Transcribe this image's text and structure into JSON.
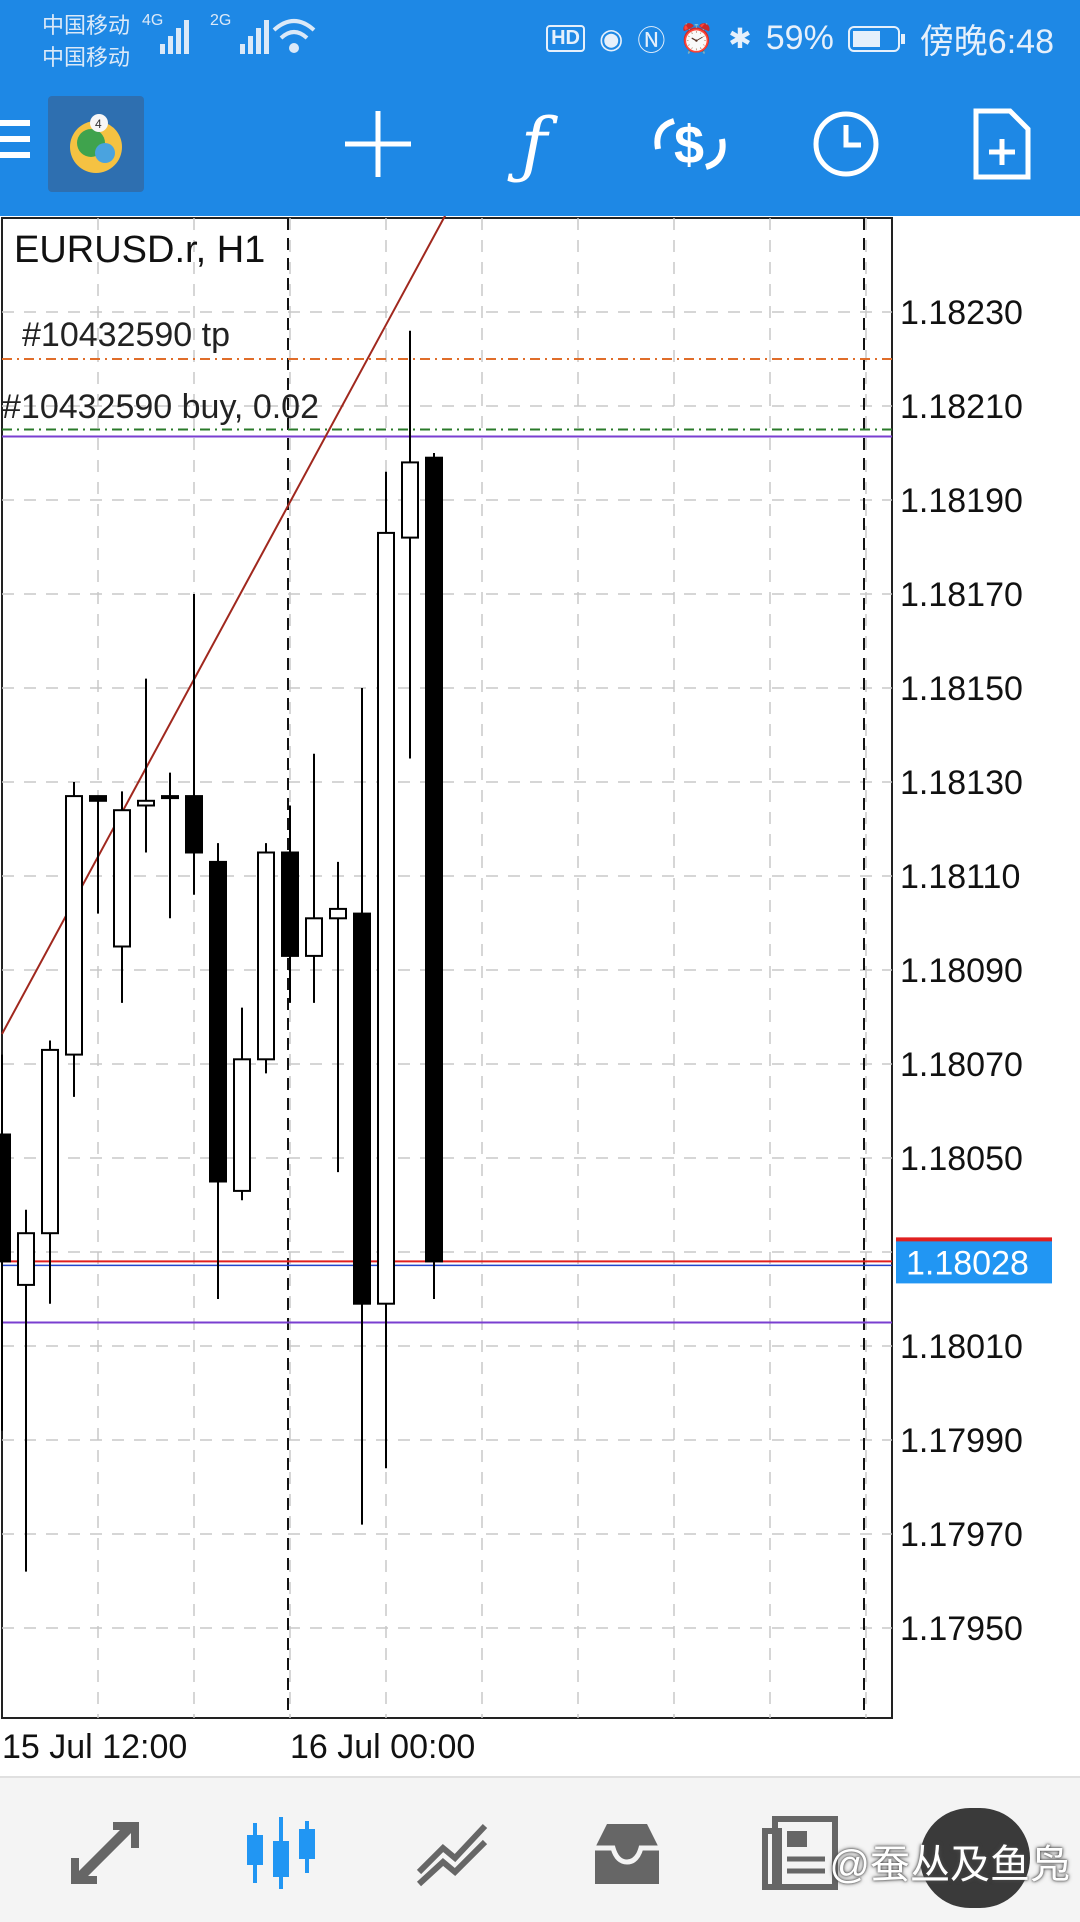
{
  "status_bar": {
    "carrier_1": "中国移动",
    "carrier_2": "中国移动",
    "net_1": "4G",
    "net_2": "2G",
    "hd": "HD",
    "battery": "59%",
    "time": "傍晚6:48"
  },
  "toolbar": {
    "icons": [
      "menu-icon",
      "app-logo",
      "crosshair-icon",
      "indicators-icon",
      "trade-icon",
      "period-icon",
      "new-order-icon"
    ]
  },
  "chart": {
    "symbol_title": "EURUSD.r, H1",
    "tp_label": "#10432590 tp",
    "order_label": "#10432590 buy, 0.02",
    "price_labels": [
      "1.18230",
      "1.18210",
      "1.18190",
      "1.18170",
      "1.18150",
      "1.18130",
      "1.18110",
      "1.18090",
      "1.18070",
      "1.18050",
      "1.18010",
      "1.17990",
      "1.17970",
      "1.17950"
    ],
    "current_price": "1.18028",
    "time_labels": [
      "15 Jul 12:00",
      "16 Jul 00:00"
    ],
    "accent_color": "#2196f3"
  },
  "chart_data": {
    "type": "candlestick",
    "series": [
      {
        "o": 1.18055,
        "h": 1.18072,
        "l": 1.17992,
        "c": 1.18028
      },
      {
        "o": 1.18023,
        "h": 1.18039,
        "l": 1.17962,
        "c": 1.18034
      },
      {
        "o": 1.18034,
        "h": 1.18075,
        "l": 1.18019,
        "c": 1.18073
      },
      {
        "o": 1.18072,
        "h": 1.1813,
        "l": 1.18063,
        "c": 1.18127
      },
      {
        "o": 1.18127,
        "h": 1.18127,
        "l": 1.18102,
        "c": 1.18126
      },
      {
        "o": 1.18095,
        "h": 1.18128,
        "l": 1.18083,
        "c": 1.18124
      },
      {
        "o": 1.18125,
        "h": 1.18152,
        "l": 1.18115,
        "c": 1.18126
      },
      {
        "o": 1.18127,
        "h": 1.18132,
        "l": 1.18101,
        "c": 1.18127
      },
      {
        "o": 1.18127,
        "h": 1.1817,
        "l": 1.18106,
        "c": 1.18115
      },
      {
        "o": 1.18113,
        "h": 1.18117,
        "l": 1.1802,
        "c": 1.18045
      },
      {
        "o": 1.18043,
        "h": 1.18082,
        "l": 1.18041,
        "c": 1.18071
      },
      {
        "o": 1.18071,
        "h": 1.18117,
        "l": 1.18068,
        "c": 1.18115
      },
      {
        "o": 1.18115,
        "h": 1.18125,
        "l": 1.18083,
        "c": 1.18093
      },
      {
        "o": 1.18093,
        "h": 1.18136,
        "l": 1.18083,
        "c": 1.18101
      },
      {
        "o": 1.18101,
        "h": 1.18113,
        "l": 1.18047,
        "c": 1.18103
      },
      {
        "o": 1.18102,
        "h": 1.1815,
        "l": 1.17972,
        "c": 1.18019
      },
      {
        "o": 1.18019,
        "h": 1.18196,
        "l": 1.17984,
        "c": 1.18183
      },
      {
        "o": 1.18182,
        "h": 1.18226,
        "l": 1.18135,
        "c": 1.18198
      },
      {
        "o": 1.18199,
        "h": 1.182,
        "l": 1.1802,
        "c": 1.18028
      }
    ],
    "ylim": [
      1.17935,
      1.18248
    ],
    "levels": {
      "tp": 1.1822,
      "order": 1.18205,
      "current": 1.18028,
      "purple_low": 1.18015
    },
    "title": "EURUSD.r, H1"
  },
  "bottom_bar": {
    "items": [
      "quotes-icon",
      "chart-icon",
      "trade-icon",
      "history-icon",
      "news-icon",
      "messages-icon"
    ],
    "watermark": "@蚕丛及鱼凫"
  }
}
